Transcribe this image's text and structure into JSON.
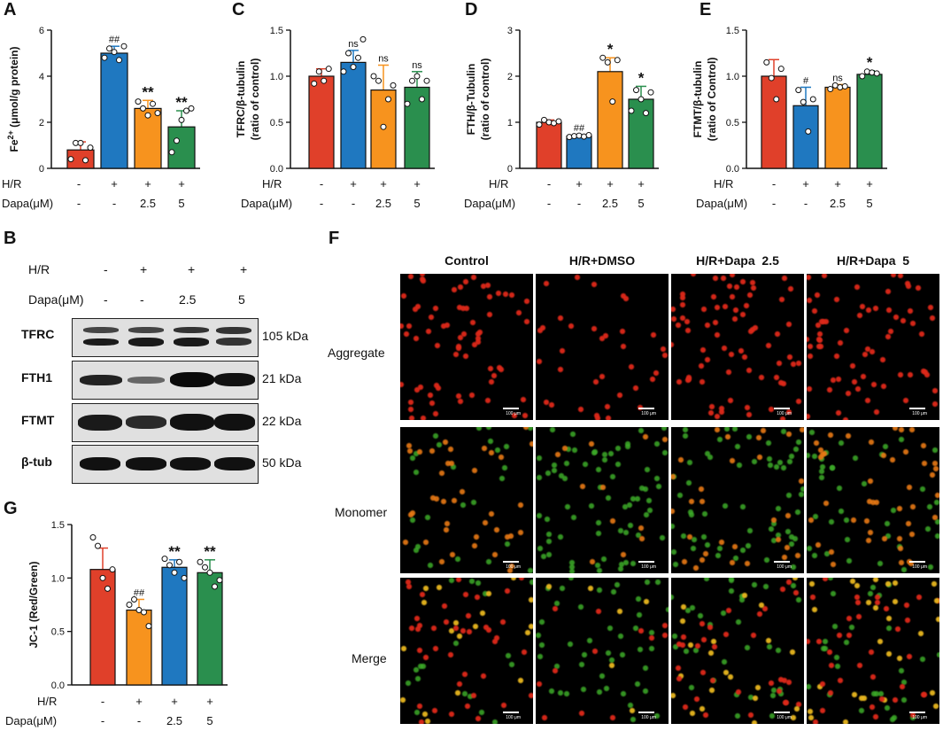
{
  "panel_labels": {
    "a": "A",
    "b": "B",
    "c": "C",
    "d": "D",
    "e": "E",
    "f": "F",
    "g": "G"
  },
  "conditions": {
    "hr_label": "H/R",
    "dapa_label": "Dapa(μM)",
    "hr_values": [
      "-",
      "+",
      "+",
      "+"
    ],
    "dapa_values": [
      "-",
      "-",
      "2.5",
      "5"
    ]
  },
  "colors": {
    "red": "#e0402a",
    "blue": "#1f78c0",
    "orange": "#f7931e",
    "green": "#2a8f4e"
  },
  "chart_data": [
    {
      "panel": "A",
      "type": "bar",
      "ylabel": "Fe2+ (μmol/g protein)",
      "ylabel_main": "Fe",
      "ylabel_sup": "2+",
      "ylabel_rest": " (μmol/g protein)",
      "ylim": [
        0,
        6
      ],
      "yticks": [
        "0",
        "2",
        "4",
        "6"
      ],
      "values": [
        0.8,
        5.0,
        2.6,
        1.8
      ],
      "errors": [
        0.35,
        0.3,
        0.35,
        0.7
      ],
      "colors": [
        "#e0402a",
        "#1f78c0",
        "#f7931e",
        "#2a8f4e"
      ],
      "annotations": [
        "",
        "##",
        "**",
        "**"
      ],
      "points": [
        [
          0.4,
          1.1,
          1.1,
          0.35,
          0.9
        ],
        [
          4.8,
          5.2,
          5.05,
          4.7,
          5.3
        ],
        [
          2.9,
          2.6,
          2.3,
          2.8,
          2.4
        ],
        [
          0.7,
          1.2,
          2.1,
          2.5,
          2.6
        ]
      ]
    },
    {
      "panel": "C",
      "type": "bar",
      "ylabel": "TFRC/β-tubulin (ratio of control)",
      "ylabel_line1": "TFRC/β-tubulin",
      "ylabel_line2": "(ratio of control)",
      "ylim": [
        0,
        1.5
      ],
      "yticks": [
        "0.0",
        "0.5",
        "1.0",
        "1.5"
      ],
      "values": [
        1.0,
        1.15,
        0.85,
        0.88
      ],
      "errors": [
        0.08,
        0.13,
        0.27,
        0.17
      ],
      "colors": [
        "#e0402a",
        "#1f78c0",
        "#f7931e",
        "#2a8f4e"
      ],
      "annotations": [
        "",
        "ns",
        "ns",
        "ns"
      ],
      "points": [
        [
          0.92,
          1.05,
          0.95,
          1.08
        ],
        [
          1.05,
          1.25,
          1.1,
          1.2,
          1.4
        ],
        [
          1.0,
          0.95,
          0.45,
          0.75,
          0.9
        ],
        [
          0.7,
          0.95,
          1.0,
          0.75,
          0.95
        ]
      ]
    },
    {
      "panel": "D",
      "type": "bar",
      "ylabel": "FTH/β-Tubulin (ratio of control)",
      "ylabel_line1": "FTH/β-Tubulin",
      "ylabel_line2": "(ratio of control)",
      "ylim": [
        0,
        3
      ],
      "yticks": [
        "0",
        "1",
        "2",
        "3"
      ],
      "values": [
        1.0,
        0.7,
        2.1,
        1.5
      ],
      "errors": [
        0.05,
        0.03,
        0.3,
        0.28
      ],
      "colors": [
        "#e0402a",
        "#1f78c0",
        "#f7931e",
        "#2a8f4e"
      ],
      "annotations": [
        "",
        "##",
        "*",
        "*"
      ],
      "points": [
        [
          0.95,
          1.05,
          1.0,
          0.98,
          1.02
        ],
        [
          0.68,
          0.7,
          0.71,
          0.69,
          0.72
        ],
        [
          2.4,
          2.3,
          1.45,
          2.35
        ],
        [
          1.25,
          1.7,
          1.5,
          1.2,
          1.65
        ]
      ]
    },
    {
      "panel": "E",
      "type": "bar",
      "ylabel": "FTMT/β-tubulin (ratio of Control)",
      "ylabel_line1": "FTMT/β-tubulin",
      "ylabel_line2": "(ratio of Control)",
      "ylim": [
        0,
        1.5
      ],
      "yticks": [
        "0.0",
        "0.5",
        "1.0",
        "1.5"
      ],
      "values": [
        1.0,
        0.68,
        0.88,
        1.02
      ],
      "errors": [
        0.18,
        0.2,
        0.03,
        0.04
      ],
      "colors": [
        "#e0402a",
        "#1f78c0",
        "#f7931e",
        "#2a8f4e"
      ],
      "annotations": [
        "",
        "#",
        "ns",
        "*"
      ],
      "points": [
        [
          1.15,
          0.98,
          0.75,
          1.08
        ],
        [
          0.85,
          0.72,
          0.4,
          0.75
        ],
        [
          0.86,
          0.9,
          0.88,
          0.89
        ],
        [
          1.0,
          1.05,
          1.04,
          1.03
        ]
      ]
    },
    {
      "panel": "G",
      "type": "bar",
      "ylabel": "JC-1 (Red/Green)",
      "ylim": [
        0,
        1.5
      ],
      "yticks": [
        "0.0",
        "0.5",
        "1.0",
        "1.5"
      ],
      "values": [
        1.08,
        0.7,
        1.1,
        1.05
      ],
      "errors": [
        0.2,
        0.1,
        0.07,
        0.12
      ],
      "colors": [
        "#e0402a",
        "#f7931e",
        "#1f78c0",
        "#2a8f4e"
      ],
      "annotations": [
        "",
        "##",
        "**",
        "**"
      ],
      "points": [
        [
          1.38,
          1.3,
          1.0,
          0.9,
          1.08
        ],
        [
          0.75,
          0.8,
          0.7,
          0.68,
          0.55
        ],
        [
          1.18,
          1.12,
          1.05,
          1.15,
          1.0
        ],
        [
          1.15,
          1.1,
          1.05,
          0.92,
          0.98
        ]
      ]
    }
  ],
  "western_blot": {
    "rows": [
      {
        "protein": "TFRC",
        "size": "105 kDa"
      },
      {
        "protein": "FTH1",
        "size": "21 kDa"
      },
      {
        "protein": "FTMT",
        "size": "22 kDa"
      },
      {
        "protein": "β-tub",
        "size": "50 kDa"
      }
    ]
  },
  "microscopy": {
    "columns": [
      "Control",
      "H/R+DMSO",
      "H/R+Dapa  2.5",
      "H/R+Dapa  5"
    ],
    "rows": [
      "Aggregate",
      "Monomer",
      "Merge"
    ],
    "scale_label": "100 μm"
  }
}
